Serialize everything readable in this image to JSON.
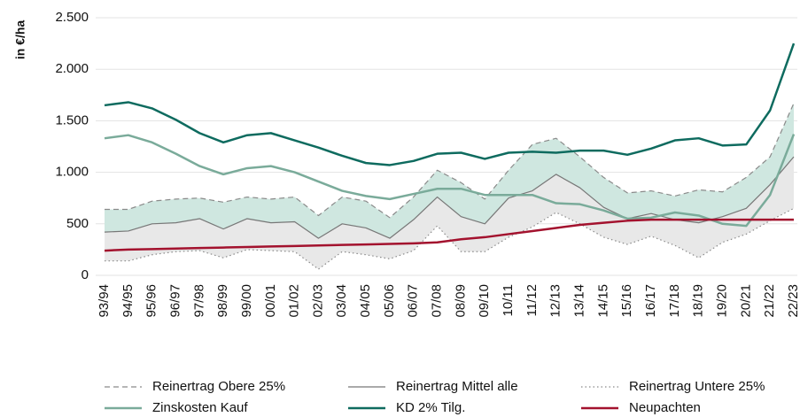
{
  "chart_data": {
    "type": "line",
    "y_label": "in €/ha",
    "categories": [
      "93/94",
      "94/95",
      "95/96",
      "96/97",
      "97/98",
      "98/99",
      "99/00",
      "00/01",
      "01/02",
      "02/03",
      "03/04",
      "04/05",
      "05/06",
      "06/07",
      "07/08",
      "08/09",
      "09/10",
      "10/11",
      "11/12",
      "12/13",
      "13/14",
      "14/15",
      "15/16",
      "16/17",
      "17/18",
      "18/19",
      "19/20",
      "20/21",
      "21/22",
      "22/23"
    ],
    "ylim": [
      0,
      2500
    ],
    "yticks": [
      0,
      500,
      {
        "value": 1000,
        "label": "1.000"
      },
      {
        "value": 1500,
        "label": "1.500"
      },
      {
        "value": 2000,
        "label": "2.000"
      },
      {
        "value": 2500,
        "label": "2.500"
      }
    ],
    "grid": true,
    "series": [
      {
        "name": "Reinertrag Obere 25%",
        "color": "#8a8a8a",
        "dash": "dashed",
        "width": 1.2,
        "fill": "#cfe7e0",
        "values": [
          640,
          640,
          720,
          740,
          750,
          710,
          760,
          740,
          760,
          580,
          760,
          720,
          560,
          760,
          1020,
          900,
          740,
          1020,
          1270,
          1330,
          1150,
          950,
          800,
          820,
          770,
          830,
          810,
          950,
          1150,
          1670
        ]
      },
      {
        "name": "Reinertrag Mittel alle",
        "color": "#777777",
        "dash": "solid",
        "width": 1.2,
        "fill": "#e8e8e8",
        "values": [
          420,
          430,
          500,
          510,
          550,
          450,
          550,
          510,
          520,
          360,
          500,
          460,
          360,
          540,
          760,
          570,
          500,
          750,
          820,
          980,
          850,
          660,
          550,
          600,
          540,
          510,
          570,
          650,
          880,
          1150
        ]
      },
      {
        "name": "Reinertrag Untere 25%",
        "color": "#8a8a8a",
        "dash": "dotted",
        "width": 1.2,
        "values": [
          140,
          140,
          200,
          230,
          240,
          170,
          250,
          240,
          230,
          60,
          230,
          200,
          160,
          240,
          480,
          230,
          230,
          370,
          470,
          610,
          500,
          370,
          300,
          380,
          290,
          170,
          320,
          400,
          530,
          650
        ]
      },
      {
        "name": "Zinskosten Kauf",
        "color": "#7aab9a",
        "dash": "solid",
        "width": 2.5,
        "values": [
          1330,
          1360,
          1290,
          1180,
          1060,
          980,
          1040,
          1060,
          1000,
          910,
          820,
          770,
          740,
          790,
          840,
          840,
          780,
          780,
          780,
          700,
          690,
          630,
          550,
          560,
          610,
          580,
          500,
          480,
          780,
          1370
        ]
      },
      {
        "name": "KD 2% Tilg.",
        "color": "#0e6b5f",
        "dash": "solid",
        "width": 2.5,
        "values": [
          1650,
          1680,
          1620,
          1510,
          1380,
          1290,
          1360,
          1380,
          1310,
          1240,
          1160,
          1090,
          1070,
          1110,
          1180,
          1190,
          1130,
          1190,
          1200,
          1190,
          1210,
          1210,
          1170,
          1230,
          1310,
          1330,
          1260,
          1270,
          1600,
          2250
        ]
      },
      {
        "name": "Neupachten",
        "color": "#a3122e",
        "dash": "solid",
        "width": 2.5,
        "values": [
          240,
          250,
          255,
          260,
          265,
          270,
          275,
          280,
          285,
          290,
          295,
          300,
          305,
          310,
          320,
          350,
          370,
          400,
          430,
          460,
          490,
          510,
          530,
          540,
          540,
          540,
          540,
          540,
          540,
          540
        ]
      }
    ]
  }
}
